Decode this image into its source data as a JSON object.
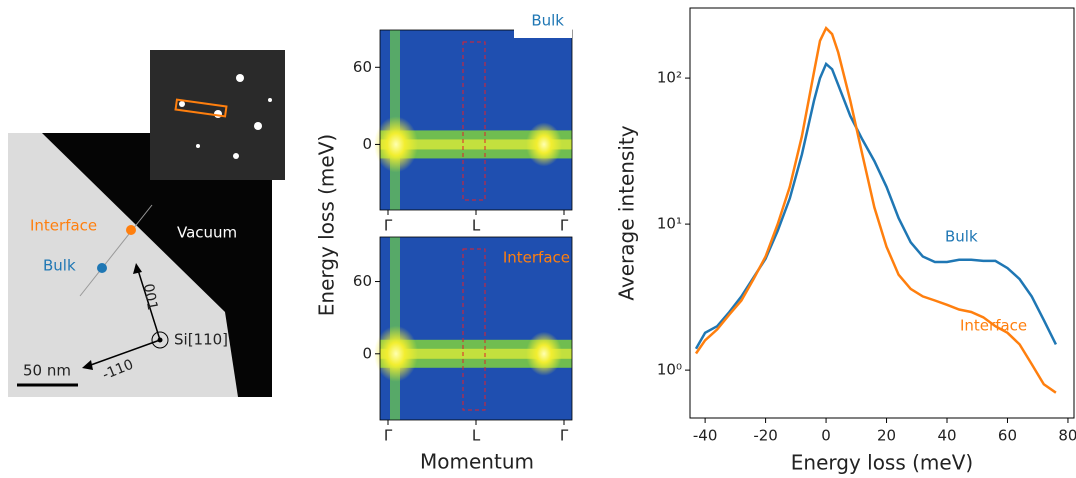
{
  "micrograph": {
    "labels": {
      "interface": "Interface",
      "bulk": "Bulk",
      "vacuum": "Vacuum",
      "dir_001": "001",
      "dir_110": "-110",
      "zone_axis": "Si[110]",
      "scale_bar": "50 nm"
    }
  },
  "dispersion": {
    "ylabel": "Energy loss (meV)",
    "xlabel": "Momentum",
    "panels": [
      {
        "label": "Bulk",
        "label_color": "#1f77b4",
        "categories": [
          "Γ",
          "L",
          "Γ"
        ],
        "ylim": [
          -51,
          89
        ],
        "yticks": [
          0,
          60
        ]
      },
      {
        "label": "Interface",
        "label_color": "#ff7f0e",
        "categories": [
          "Γ",
          "L",
          "Γ"
        ],
        "ylim": [
          -55,
          97
        ],
        "yticks": [
          0,
          60
        ]
      }
    ]
  },
  "chart_data": {
    "type": "line",
    "xlabel": "Energy loss (meV)",
    "ylabel": "Average intensity",
    "log_y": true,
    "xlim": [
      -45,
      82
    ],
    "ylim": [
      0.47,
      302
    ],
    "xticks": [
      -40,
      -20,
      0,
      20,
      40,
      60,
      80
    ],
    "yticks": [
      {
        "value": 1,
        "label": "10⁰"
      },
      {
        "value": 10,
        "label": "10¹"
      },
      {
        "value": 100,
        "label": "10²"
      }
    ],
    "x": [
      -43,
      -40,
      -36,
      -32,
      -28,
      -24,
      -20,
      -16,
      -12,
      -8,
      -4,
      -2,
      0,
      2,
      4,
      8,
      12,
      16,
      20,
      24,
      28,
      32,
      36,
      40,
      44,
      48,
      52,
      56,
      60,
      64,
      68,
      72,
      76
    ],
    "series": [
      {
        "name": "Bulk",
        "color": "#1f77b4",
        "values": [
          1.4,
          1.8,
          2.0,
          2.5,
          3.2,
          4.3,
          5.8,
          9,
          15,
          30,
          70,
          100,
          125,
          115,
          90,
          55,
          38,
          27,
          18,
          11,
          7.5,
          6,
          5.5,
          5.5,
          5.7,
          5.7,
          5.6,
          5.6,
          5.0,
          4.2,
          3.2,
          2.2,
          1.5
        ]
      },
      {
        "name": "Interface",
        "color": "#ff7f0e",
        "values": [
          1.3,
          1.6,
          1.9,
          2.4,
          3.0,
          4.2,
          6,
          10,
          18,
          40,
          110,
          180,
          220,
          200,
          150,
          70,
          30,
          13,
          7,
          4.5,
          3.6,
          3.2,
          3.0,
          2.8,
          2.6,
          2.5,
          2.3,
          2.0,
          1.8,
          1.5,
          1.1,
          0.8,
          0.7
        ]
      }
    ]
  }
}
